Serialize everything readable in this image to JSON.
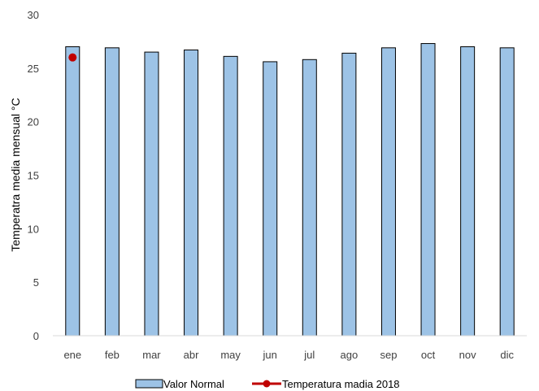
{
  "chart_data": {
    "type": "bar",
    "categories": [
      "ene",
      "feb",
      "mar",
      "abr",
      "may",
      "jun",
      "jul",
      "ago",
      "sep",
      "oct",
      "nov",
      "dic"
    ],
    "series": [
      {
        "name": "Valor Normal",
        "type": "bar",
        "color": "#9dc3e6",
        "values": [
          27.0,
          26.9,
          26.5,
          26.7,
          26.1,
          25.6,
          25.8,
          26.4,
          26.9,
          27.3,
          27.0,
          26.9
        ]
      },
      {
        "name": "Temperatura madia 2018",
        "type": "line",
        "color": "#c00000",
        "values": [
          26.0,
          null,
          null,
          null,
          null,
          null,
          null,
          null,
          null,
          null,
          null,
          null
        ]
      }
    ],
    "title": "",
    "xlabel": "",
    "ylabel": "Temperatra media mensual °C",
    "ylim": [
      0,
      30
    ],
    "yticks": [
      0,
      5,
      10,
      15,
      20,
      25,
      30
    ],
    "grid": false,
    "legend_position": "bottom"
  }
}
